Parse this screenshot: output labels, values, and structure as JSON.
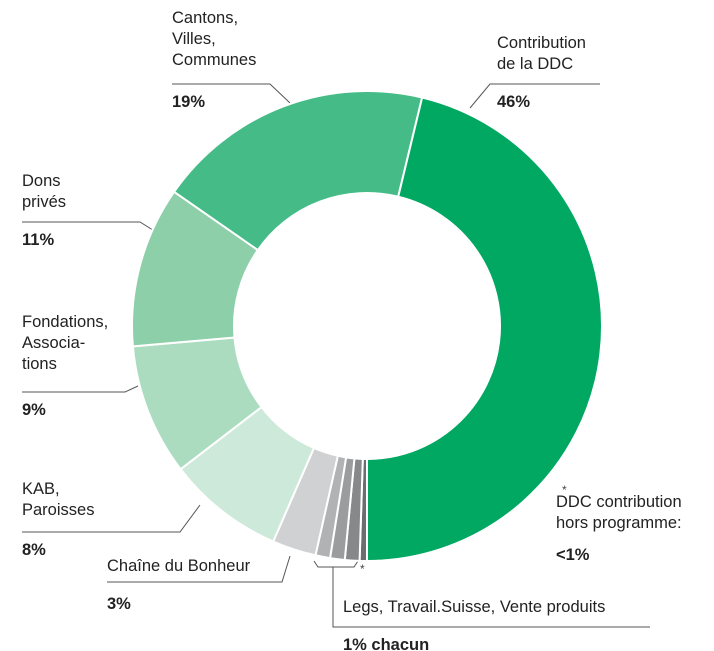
{
  "chart_data": {
    "type": "donut",
    "categories": [
      "DDC contribution\nhors programme:",
      null,
      null,
      null,
      "Chaîne du Bonheur",
      "KAB,\nParoisses",
      "Fondations,\nAssocia-\ntions",
      "Dons\nprivés",
      "Cantons,\nVilles,\nCommunes",
      "Contribution\nde la DDC"
    ],
    "values": [
      0.5,
      1,
      1,
      1,
      3,
      8,
      9,
      11,
      19,
      46
    ],
    "value_labels": [
      "<1%",
      null,
      null,
      null,
      "3%",
      "8%",
      "9%",
      "11%",
      "19%",
      "46%"
    ],
    "colors": [
      "#6b6d6f",
      "#86888a",
      "#9a9c9e",
      "#b0b2b4",
      "#d0d1d3",
      "#cde9da",
      "#abdcbf",
      "#8ccfa8",
      "#45bc88",
      "#00a862"
    ],
    "group_label": {
      "text": "Legs, Travail.Suisse, Vente produits",
      "value_label": "1% chacun"
    },
    "note_marker": "*"
  }
}
